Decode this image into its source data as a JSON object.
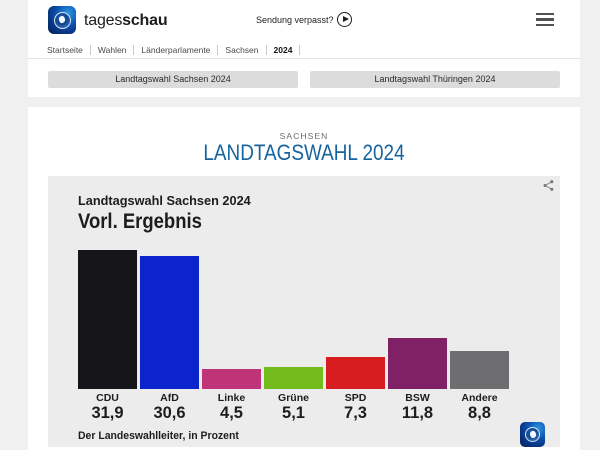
{
  "header": {
    "brand_regular": "tages",
    "brand_bold": "schau",
    "sendung_verpasst": "Sendung verpasst?"
  },
  "breadcrumb": {
    "items": [
      {
        "label": "Startseite"
      },
      {
        "label": "Wahlen"
      },
      {
        "label": "Länderparlamente"
      },
      {
        "label": "Sachsen"
      },
      {
        "label": "2024",
        "active": true
      }
    ]
  },
  "buttons": [
    {
      "label": "Landtagswahl Sachsen 2024"
    },
    {
      "label": "Landtagswahl Thüringen 2024"
    }
  ],
  "page": {
    "kicker": "SACHSEN",
    "title": "LANDTAGSWAHL 2024"
  },
  "chart_data": {
    "type": "bar",
    "title": "Landtagswahl Sachsen 2024",
    "subtitle": "Vorl. Ergebnis",
    "categories": [
      "CDU",
      "AfD",
      "Linke",
      "Grüne",
      "SPD",
      "BSW",
      "Andere"
    ],
    "values": [
      31.9,
      30.6,
      4.5,
      5.1,
      7.3,
      11.8,
      8.8
    ],
    "value_labels": [
      "31,9",
      "30,6",
      "4,5",
      "5,1",
      "7,3",
      "11,8",
      "8,8"
    ],
    "bar_colors": [
      "#161519",
      "#0b24cc",
      "#bf3379",
      "#74bc1c",
      "#d71d1f",
      "#7f2164",
      "#6e6e70"
    ],
    "source": "Der Landeswahlleiter, in Prozent",
    "unit": "Prozent",
    "ylim": [
      0,
      35
    ],
    "grid": false,
    "legend": "none"
  }
}
